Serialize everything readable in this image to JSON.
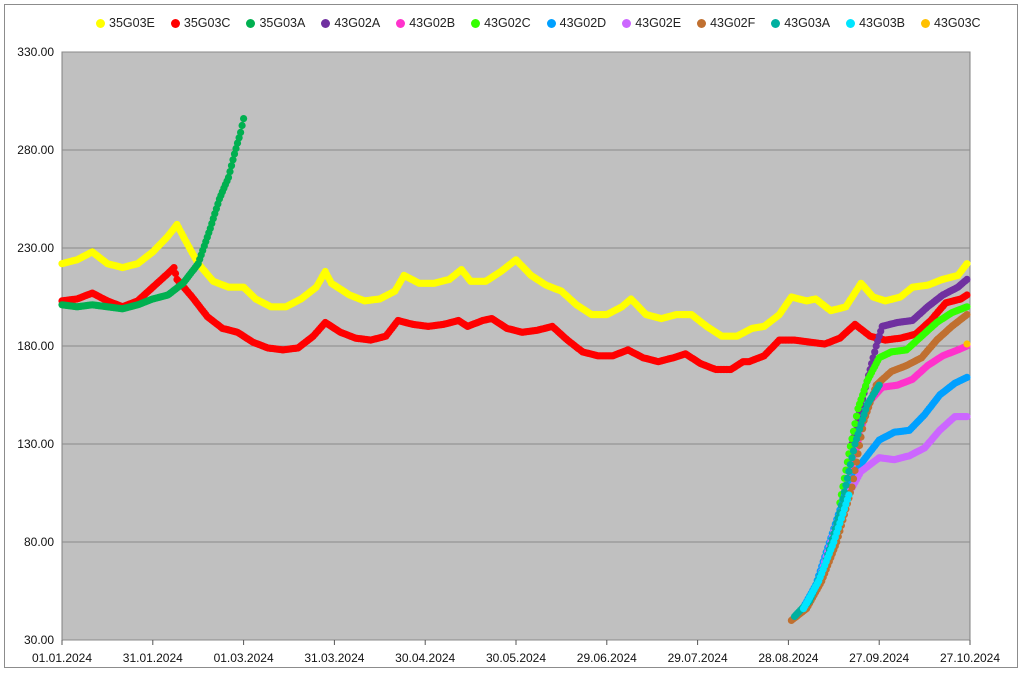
{
  "chart_data": {
    "type": "scatter",
    "title": "",
    "xlabel": "",
    "ylabel": "",
    "x_range": [
      "01.01.2024",
      "27.10.2024"
    ],
    "ylim": [
      30,
      330
    ],
    "y_ticks": [
      "30.00",
      "80.00",
      "130.00",
      "180.00",
      "230.00",
      "280.00",
      "330.00"
    ],
    "x_ticks": [
      "01.01.2024",
      "31.01.2024",
      "01.03.2024",
      "31.03.2024",
      "30.04.2024",
      "30.05.2024",
      "29.06.2024",
      "29.07.2024",
      "28.08.2024",
      "27.09.2024",
      "27.10.2024"
    ],
    "grid": "horizontal",
    "legend_position": "top",
    "series": [
      {
        "name": "35G03E",
        "color": "#ffff00",
        "points": [
          [
            "01.01.2024",
            222
          ],
          [
            "06.01.2024",
            224
          ],
          [
            "11.01.2024",
            228
          ],
          [
            "16.01.2024",
            222
          ],
          [
            "21.01.2024",
            220
          ],
          [
            "26.01.2024",
            222
          ],
          [
            "31.01.2024",
            228
          ],
          [
            "05.02.2024",
            236
          ],
          [
            "08.02.2024",
            242
          ],
          [
            "10.02.2024",
            236
          ],
          [
            "15.02.2024",
            222
          ],
          [
            "20.02.2024",
            213
          ],
          [
            "25.02.2024",
            210
          ],
          [
            "01.03.2024",
            210
          ],
          [
            "05.03.2024",
            204
          ],
          [
            "10.03.2024",
            200
          ],
          [
            "15.03.2024",
            200
          ],
          [
            "20.03.2024",
            204
          ],
          [
            "25.03.2024",
            210
          ],
          [
            "28.03.2024",
            218
          ],
          [
            "30.03.2024",
            212
          ],
          [
            "05.04.2024",
            206
          ],
          [
            "10.04.2024",
            203
          ],
          [
            "15.04.2024",
            204
          ],
          [
            "20.04.2024",
            208
          ],
          [
            "23.04.2024",
            216
          ],
          [
            "28.04.2024",
            212
          ],
          [
            "03.05.2024",
            212
          ],
          [
            "08.05.2024",
            214
          ],
          [
            "12.05.2024",
            219
          ],
          [
            "15.05.2024",
            213
          ],
          [
            "20.05.2024",
            213
          ],
          [
            "25.05.2024",
            218
          ],
          [
            "30.05.2024",
            224
          ],
          [
            "04.06.2024",
            216
          ],
          [
            "09.06.2024",
            211
          ],
          [
            "14.06.2024",
            208
          ],
          [
            "19.06.2024",
            201
          ],
          [
            "24.06.2024",
            196
          ],
          [
            "29.06.2024",
            196
          ],
          [
            "04.07.2024",
            200
          ],
          [
            "07.07.2024",
            204
          ],
          [
            "12.07.2024",
            196
          ],
          [
            "17.07.2024",
            194
          ],
          [
            "22.07.2024",
            196
          ],
          [
            "27.07.2024",
            196
          ],
          [
            "01.08.2024",
            190
          ],
          [
            "06.08.2024",
            185
          ],
          [
            "11.08.2024",
            185
          ],
          [
            "16.08.2024",
            189
          ],
          [
            "20.08.2024",
            190
          ],
          [
            "25.08.2024",
            196
          ],
          [
            "29.08.2024",
            205
          ],
          [
            "03.09.2024",
            203
          ],
          [
            "06.09.2024",
            204
          ],
          [
            "11.09.2024",
            198
          ],
          [
            "16.09.2024",
            200
          ],
          [
            "21.09.2024",
            212
          ],
          [
            "25.09.2024",
            205
          ],
          [
            "29.09.2024",
            203
          ],
          [
            "04.10.2024",
            205
          ],
          [
            "08.10.2024",
            210
          ],
          [
            "13.10.2024",
            211
          ],
          [
            "18.10.2024",
            214
          ],
          [
            "23.10.2024",
            216
          ],
          [
            "26.10.2024",
            222
          ]
        ]
      },
      {
        "name": "35G03C",
        "color": "#ff0000",
        "points": [
          [
            "01.01.2024",
            203
          ],
          [
            "06.01.2024",
            204
          ],
          [
            "11.01.2024",
            207
          ],
          [
            "16.01.2024",
            203
          ],
          [
            "21.01.2024",
            200
          ],
          [
            "26.01.2024",
            203
          ],
          [
            "31.01.2024",
            210
          ],
          [
            "05.02.2024",
            217
          ],
          [
            "07.02.2024",
            220
          ],
          [
            "08.02.2024",
            214
          ],
          [
            "13.02.2024",
            205
          ],
          [
            "18.02.2024",
            195
          ],
          [
            "23.02.2024",
            189
          ],
          [
            "28.02.2024",
            187
          ],
          [
            "04.03.2024",
            182
          ],
          [
            "09.03.2024",
            179
          ],
          [
            "14.03.2024",
            178
          ],
          [
            "19.03.2024",
            179
          ],
          [
            "24.03.2024",
            185
          ],
          [
            "28.03.2024",
            192
          ],
          [
            "02.04.2024",
            187
          ],
          [
            "07.04.2024",
            184
          ],
          [
            "12.04.2024",
            183
          ],
          [
            "17.04.2024",
            185
          ],
          [
            "21.04.2024",
            193
          ],
          [
            "26.04.2024",
            191
          ],
          [
            "01.05.2024",
            190
          ],
          [
            "06.05.2024",
            191
          ],
          [
            "11.05.2024",
            193
          ],
          [
            "14.05.2024",
            190
          ],
          [
            "19.05.2024",
            193
          ],
          [
            "22.05.2024",
            194
          ],
          [
            "27.05.2024",
            189
          ],
          [
            "01.06.2024",
            187
          ],
          [
            "06.06.2024",
            188
          ],
          [
            "11.06.2024",
            190
          ],
          [
            "16.06.2024",
            183
          ],
          [
            "21.06.2024",
            177
          ],
          [
            "26.06.2024",
            175
          ],
          [
            "01.07.2024",
            175
          ],
          [
            "06.07.2024",
            178
          ],
          [
            "11.07.2024",
            174
          ],
          [
            "16.07.2024",
            172
          ],
          [
            "21.07.2024",
            174
          ],
          [
            "25.07.2024",
            176
          ],
          [
            "30.07.2024",
            171
          ],
          [
            "04.08.2024",
            168
          ],
          [
            "09.08.2024",
            168
          ],
          [
            "13.08.2024",
            172
          ],
          [
            "15.08.2024",
            172
          ],
          [
            "20.08.2024",
            175
          ],
          [
            "25.08.2024",
            183
          ],
          [
            "30.08.2024",
            183
          ],
          [
            "04.09.2024",
            182
          ],
          [
            "09.09.2024",
            181
          ],
          [
            "14.09.2024",
            184
          ],
          [
            "19.09.2024",
            191
          ],
          [
            "24.09.2024",
            185
          ],
          [
            "29.09.2024",
            183
          ],
          [
            "04.10.2024",
            184
          ],
          [
            "09.10.2024",
            186
          ],
          [
            "14.10.2024",
            193
          ],
          [
            "19.10.2024",
            202
          ],
          [
            "24.10.2024",
            204
          ],
          [
            "26.10.2024",
            206
          ]
        ]
      },
      {
        "name": "35G03A",
        "color": "#00b050",
        "points": [
          [
            "01.01.2024",
            201
          ],
          [
            "06.01.2024",
            200
          ],
          [
            "11.01.2024",
            201
          ],
          [
            "16.01.2024",
            200
          ],
          [
            "21.01.2024",
            199
          ],
          [
            "26.01.2024",
            201
          ],
          [
            "31.01.2024",
            204
          ],
          [
            "05.02.2024",
            206
          ],
          [
            "10.02.2024",
            212
          ],
          [
            "15.02.2024",
            222
          ],
          [
            "19.02.2024",
            240
          ],
          [
            "22.02.2024",
            255
          ],
          [
            "25.02.2024",
            266
          ],
          [
            "27.02.2024",
            278
          ],
          [
            "29.02.2024",
            289
          ],
          [
            "01.03.2024",
            296
          ]
        ]
      },
      {
        "name": "43G02A",
        "color": "#7030a0",
        "points": [
          [
            "18.09.2024",
            130
          ],
          [
            "21.09.2024",
            150
          ],
          [
            "24.09.2024",
            168
          ],
          [
            "26.09.2024",
            180
          ],
          [
            "28.09.2024",
            190
          ],
          [
            "03.10.2024",
            192
          ],
          [
            "08.10.2024",
            193
          ],
          [
            "13.10.2024",
            200
          ],
          [
            "18.10.2024",
            206
          ],
          [
            "23.10.2024",
            210
          ],
          [
            "26.10.2024",
            214
          ]
        ]
      },
      {
        "name": "43G02B",
        "color": "#ff33cc",
        "points": [
          [
            "14.09.2024",
            92
          ],
          [
            "18.09.2024",
            118
          ],
          [
            "21.09.2024",
            138
          ],
          [
            "24.09.2024",
            152
          ],
          [
            "28.09.2024",
            159
          ],
          [
            "03.10.2024",
            160
          ],
          [
            "08.10.2024",
            163
          ],
          [
            "13.10.2024",
            170
          ],
          [
            "18.10.2024",
            175
          ],
          [
            "23.10.2024",
            178
          ],
          [
            "26.10.2024",
            180
          ]
        ]
      },
      {
        "name": "43G02C",
        "color": "#33ff00",
        "points": [
          [
            "14.09.2024",
            100
          ],
          [
            "17.09.2024",
            125
          ],
          [
            "20.09.2024",
            148
          ],
          [
            "23.09.2024",
            162
          ],
          [
            "27.09.2024",
            174
          ],
          [
            "01.10.2024",
            177
          ],
          [
            "06.10.2024",
            178
          ],
          [
            "11.10.2024",
            185
          ],
          [
            "16.10.2024",
            192
          ],
          [
            "21.10.2024",
            197
          ],
          [
            "26.10.2024",
            200
          ]
        ]
      },
      {
        "name": "43G02D",
        "color": "#00a0ff",
        "points": [
          [
            "01.09.2024",
            44
          ],
          [
            "06.09.2024",
            58
          ],
          [
            "11.09.2024",
            82
          ],
          [
            "16.09.2024",
            106
          ],
          [
            "21.09.2024",
            120
          ],
          [
            "27.09.2024",
            132
          ],
          [
            "02.10.2024",
            136
          ],
          [
            "07.10.2024",
            137
          ],
          [
            "12.10.2024",
            145
          ],
          [
            "17.10.2024",
            155
          ],
          [
            "22.10.2024",
            161
          ],
          [
            "26.10.2024",
            164
          ]
        ]
      },
      {
        "name": "43G02E",
        "color": "#cc66ff",
        "points": [
          [
            "07.09.2024",
            60
          ],
          [
            "12.09.2024",
            85
          ],
          [
            "16.09.2024",
            102
          ],
          [
            "21.09.2024",
            116
          ],
          [
            "27.09.2024",
            123
          ],
          [
            "02.10.2024",
            122
          ],
          [
            "07.10.2024",
            124
          ],
          [
            "12.10.2024",
            128
          ],
          [
            "17.10.2024",
            137
          ],
          [
            "22.10.2024",
            144
          ],
          [
            "26.10.2024",
            144
          ]
        ]
      },
      {
        "name": "43G02F",
        "color": "#c07030",
        "points": [
          [
            "29.08.2024",
            40
          ],
          [
            "03.09.2024",
            46
          ],
          [
            "08.09.2024",
            60
          ],
          [
            "13.09.2024",
            80
          ],
          [
            "18.09.2024",
            108
          ],
          [
            "22.09.2024",
            142
          ],
          [
            "26.09.2024",
            160
          ],
          [
            "01.10.2024",
            167
          ],
          [
            "06.10.2024",
            170
          ],
          [
            "11.10.2024",
            174
          ],
          [
            "16.10.2024",
            183
          ],
          [
            "21.10.2024",
            190
          ],
          [
            "26.10.2024",
            196
          ]
        ]
      },
      {
        "name": "43G03A",
        "color": "#00b0a0",
        "points": [
          [
            "30.08.2024",
            42
          ],
          [
            "04.09.2024",
            50
          ],
          [
            "09.09.2024",
            68
          ],
          [
            "14.09.2024",
            95
          ],
          [
            "19.09.2024",
            130
          ],
          [
            "23.09.2024",
            150
          ],
          [
            "27.09.2024",
            160
          ]
        ]
      },
      {
        "name": "43G03B",
        "color": "#00e5ff",
        "points": [
          [
            "02.09.2024",
            46
          ],
          [
            "07.09.2024",
            60
          ],
          [
            "12.09.2024",
            80
          ],
          [
            "17.09.2024",
            104
          ]
        ]
      },
      {
        "name": "43G03C",
        "color": "#ffc000",
        "points": [
          [
            "26.10.2024",
            181
          ]
        ]
      }
    ]
  }
}
